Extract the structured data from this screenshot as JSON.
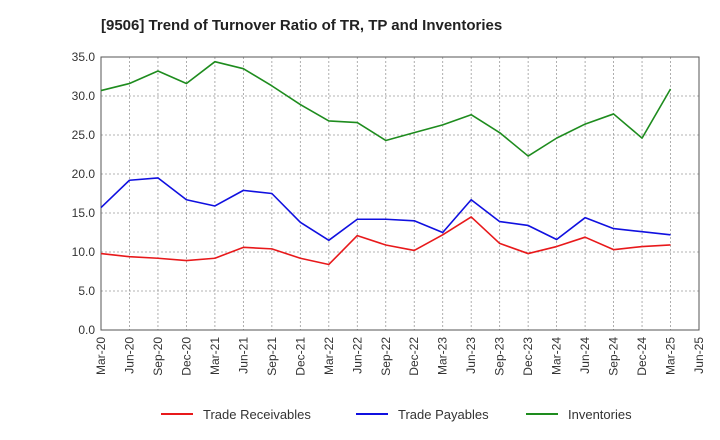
{
  "chart_data": {
    "type": "line",
    "title": "[9506]  Trend of Turnover Ratio of TR, TP and Inventories",
    "xlabel": "",
    "ylabel": "",
    "ylim": [
      0,
      35
    ],
    "yticks": [
      "0.0",
      "5.0",
      "10.0",
      "15.0",
      "20.0",
      "25.0",
      "30.0",
      "35.0"
    ],
    "categories": [
      "Mar-20",
      "Jun-20",
      "Sep-20",
      "Dec-20",
      "Mar-21",
      "Jun-21",
      "Sep-21",
      "Dec-21",
      "Mar-22",
      "Jun-22",
      "Sep-22",
      "Dec-22",
      "Mar-23",
      "Jun-23",
      "Sep-23",
      "Dec-23",
      "Mar-24",
      "Jun-24",
      "Sep-24",
      "Dec-24",
      "Mar-25",
      "Jun-25"
    ],
    "grid": true,
    "legend_position": "bottom",
    "series": [
      {
        "name": "Trade Receivables",
        "color": "#e8191b",
        "values": [
          9.8,
          9.4,
          9.2,
          8.9,
          9.2,
          10.6,
          10.4,
          9.2,
          8.4,
          12.1,
          10.9,
          10.2,
          12.2,
          14.5,
          11.1,
          9.8,
          10.7,
          11.9,
          10.3,
          10.7,
          10.9,
          null
        ]
      },
      {
        "name": "Trade Payables",
        "color": "#1010e0",
        "values": [
          15.7,
          19.2,
          19.5,
          16.7,
          15.9,
          17.9,
          17.5,
          13.8,
          11.5,
          14.2,
          14.2,
          14.0,
          12.5,
          16.7,
          13.9,
          13.4,
          11.6,
          14.4,
          13.0,
          12.6,
          12.2,
          null
        ]
      },
      {
        "name": "Inventories",
        "color": "#1e8c1e",
        "values": [
          30.7,
          31.6,
          33.2,
          31.6,
          34.4,
          33.5,
          31.3,
          28.9,
          26.8,
          26.6,
          24.3,
          25.3,
          26.3,
          27.6,
          25.3,
          22.3,
          24.6,
          26.4,
          27.7,
          24.6,
          30.9,
          null
        ]
      }
    ]
  }
}
